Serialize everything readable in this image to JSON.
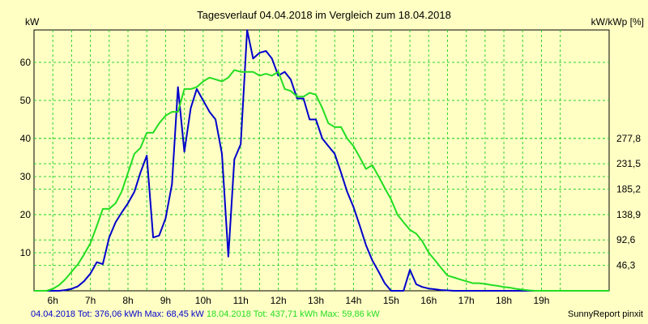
{
  "colors": {
    "background": "#ffffc4",
    "grid": "#2fd22f",
    "series_a": "#0000cc",
    "series_b": "#22dd22"
  },
  "footer": {
    "a_label": "04.04.2018 Tot: 376,06 kWh Max: 68,45 kW",
    "b_label": "18.04.2018 Tot: 437,71 kWh Max: 59,86 kW",
    "credit": "SunnyReport pinxit"
  },
  "chart_data": {
    "type": "line",
    "title": "Tagesverlauf 04.04.2018 im Vergleich zum 18.04.2018",
    "ylabel_left": "kW",
    "ylabel_right": "kW/kWp [%]",
    "xlim": [
      5.5,
      20.8
    ],
    "ylim": [
      0,
      68.5
    ],
    "x_ticks": [
      6,
      7,
      8,
      9,
      10,
      11,
      12,
      13,
      14,
      15,
      16,
      17,
      18,
      19
    ],
    "x_tick_labels": [
      "6h",
      "7h",
      "8h",
      "9h",
      "10h",
      "11h",
      "12h",
      "13h",
      "14h",
      "15h",
      "16h",
      "17h",
      "18h",
      "19h"
    ],
    "y_ticks": [
      10,
      20,
      30,
      40,
      50,
      60
    ],
    "y_tick_labels": [
      "10",
      "20",
      "30",
      "40",
      "50",
      "60"
    ],
    "y2_ticks": [
      6.67,
      13.35,
      20.02,
      26.7,
      33.37,
      40.04
    ],
    "y2_tick_labels": [
      "46,3",
      "92,6",
      "138,9",
      "185,2",
      "231,5",
      "277,8"
    ],
    "grid": true,
    "series": [
      {
        "name": "04.04.2018",
        "x": [
          5.5,
          6.0,
          6.17,
          6.33,
          6.5,
          6.67,
          6.83,
          7.0,
          7.17,
          7.33,
          7.5,
          7.67,
          7.83,
          8.0,
          8.17,
          8.33,
          8.5,
          8.67,
          8.83,
          9.0,
          9.17,
          9.33,
          9.5,
          9.67,
          9.83,
          10.0,
          10.17,
          10.33,
          10.5,
          10.67,
          10.83,
          11.0,
          11.17,
          11.33,
          11.5,
          11.67,
          11.83,
          12.0,
          12.17,
          12.33,
          12.5,
          12.67,
          12.83,
          13.0,
          13.17,
          13.33,
          13.5,
          13.67,
          13.83,
          14.0,
          14.17,
          14.33,
          14.5,
          14.67,
          14.83,
          15.0,
          15.17,
          15.33,
          15.5,
          15.67,
          15.83,
          16.0,
          16.17,
          16.33,
          16.5,
          16.67,
          16.83,
          17.0,
          17.17,
          17.33,
          17.5,
          17.67,
          17.83,
          18.0,
          18.17,
          18.33,
          18.5,
          18.67,
          18.83,
          19.0,
          19.17,
          19.33,
          19.5,
          19.67,
          19.83,
          20.0,
          20.5,
          20.8
        ],
        "y": [
          0,
          0,
          0,
          0.2,
          0.5,
          1.2,
          2.5,
          4.5,
          7.5,
          7,
          14,
          18,
          20.5,
          23,
          26,
          31,
          35.5,
          14,
          14.5,
          19,
          28,
          53.5,
          36.5,
          48,
          53,
          50,
          47,
          45,
          36,
          9,
          34.5,
          38.5,
          68.45,
          61,
          62.5,
          63,
          61,
          56.5,
          57.5,
          55.5,
          50.5,
          50.5,
          45,
          45,
          40,
          38,
          36,
          31,
          26,
          22,
          17,
          12,
          8,
          5,
          2,
          0,
          0,
          0,
          5.5,
          1.7,
          1,
          0.6,
          0.4,
          0.2,
          0.1,
          0,
          0,
          0,
          0,
          0,
          0,
          0,
          0,
          0,
          0,
          0,
          0,
          0,
          0,
          0,
          0,
          0,
          0,
          0,
          0,
          0,
          0,
          0
        ],
        "color": "#0000cc"
      },
      {
        "name": "18.04.2018",
        "x": [
          5.5,
          5.83,
          6.0,
          6.17,
          6.33,
          6.5,
          6.67,
          6.83,
          7.0,
          7.17,
          7.33,
          7.5,
          7.67,
          7.83,
          8.0,
          8.17,
          8.33,
          8.5,
          8.67,
          8.83,
          9.0,
          9.17,
          9.33,
          9.5,
          9.67,
          9.83,
          10.0,
          10.17,
          10.33,
          10.5,
          10.67,
          10.83,
          11.0,
          11.17,
          11.33,
          11.5,
          11.67,
          11.83,
          12.0,
          12.17,
          12.33,
          12.5,
          12.67,
          12.83,
          13.0,
          13.17,
          13.33,
          13.5,
          13.67,
          13.83,
          14.0,
          14.17,
          14.33,
          14.5,
          14.67,
          14.83,
          15.0,
          15.17,
          15.33,
          15.5,
          15.67,
          15.83,
          16.0,
          16.17,
          16.33,
          16.5,
          16.67,
          16.83,
          17.0,
          17.17,
          17.33,
          17.5,
          17.67,
          17.83,
          18.0,
          18.17,
          18.33,
          18.5,
          18.67,
          18.83,
          19.0,
          19.17,
          19.33,
          19.5,
          20.5,
          20.8
        ],
        "y": [
          0,
          0,
          0.5,
          1.5,
          3,
          5,
          7,
          9.5,
          12.5,
          17,
          21.5,
          21.5,
          23,
          26,
          31,
          36,
          37.5,
          41.5,
          41.5,
          44,
          46,
          47,
          47,
          53,
          53,
          53.5,
          55,
          56,
          55.5,
          55,
          56,
          58,
          57.5,
          57.5,
          57.5,
          56.5,
          57,
          56.5,
          57.5,
          53,
          52.5,
          51,
          51,
          52,
          51.5,
          48,
          44,
          43,
          43,
          40,
          38,
          35,
          32,
          33,
          30,
          27,
          24,
          20,
          18,
          16,
          15,
          13,
          10,
          8,
          6,
          4,
          3.5,
          3,
          2.5,
          2,
          2,
          1.8,
          1.5,
          1.3,
          1,
          0.8,
          0.5,
          0.3,
          0.1,
          0,
          0,
          0,
          0,
          0,
          0,
          0
        ],
        "color": "#22dd22"
      }
    ]
  }
}
